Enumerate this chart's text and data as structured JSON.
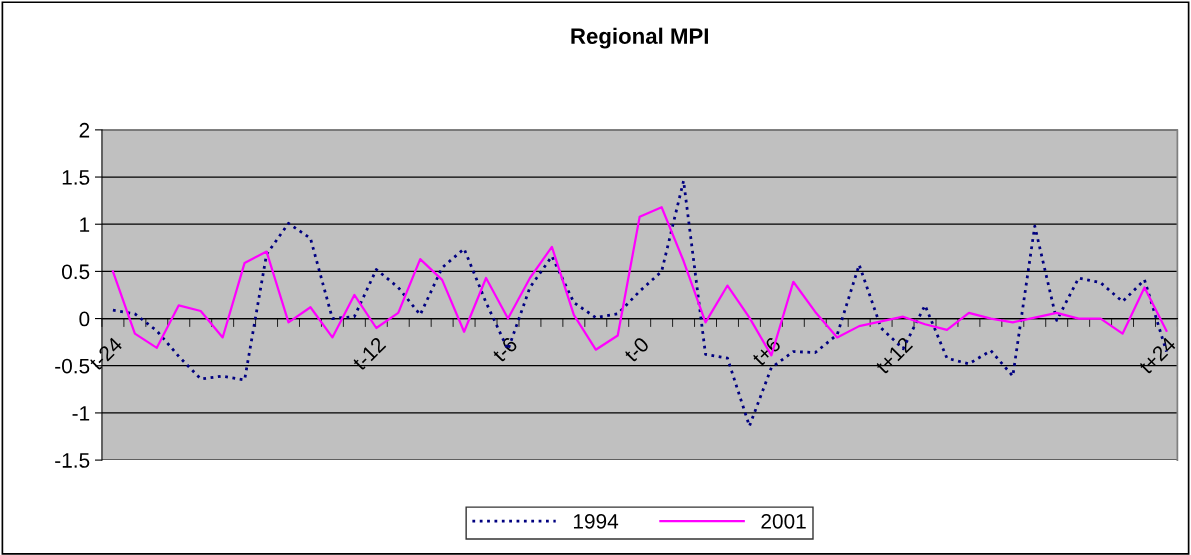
{
  "chart_data": {
    "type": "line",
    "title": "Regional MPI",
    "categories": [
      "t-24",
      null,
      null,
      null,
      null,
      null,
      null,
      null,
      null,
      null,
      null,
      null,
      "t-12",
      null,
      null,
      null,
      null,
      null,
      "t-6",
      null,
      null,
      null,
      null,
      null,
      "t-0",
      null,
      null,
      null,
      null,
      null,
      "t+6",
      null,
      null,
      null,
      null,
      null,
      "t+12",
      null,
      null,
      null,
      null,
      null,
      null,
      null,
      null,
      null,
      null,
      null,
      "t+24"
    ],
    "series": [
      {
        "name": "1994",
        "color": "#000080",
        "line_style": "dotted",
        "values": [
          0.09,
          0.05,
          -0.13,
          -0.4,
          -0.64,
          -0.61,
          -0.65,
          0.68,
          1.01,
          0.85,
          0.0,
          0.02,
          0.52,
          0.33,
          0.04,
          0.54,
          0.74,
          0.17,
          -0.33,
          0.33,
          0.66,
          0.17,
          0.01,
          0.05,
          0.29,
          0.5,
          1.46,
          -0.38,
          -0.42,
          -1.14,
          -0.52,
          -0.35,
          -0.36,
          -0.17,
          0.57,
          -0.1,
          -0.32,
          0.14,
          -0.42,
          -0.48,
          -0.34,
          -0.61,
          0.98,
          -0.02,
          0.43,
          0.38,
          0.18,
          0.41,
          -0.35
        ]
      },
      {
        "name": "2001",
        "color": "#ff00ff",
        "line_style": "solid",
        "values": [
          0.5,
          -0.16,
          -0.31,
          0.14,
          0.08,
          -0.2,
          0.59,
          0.71,
          -0.04,
          0.12,
          -0.2,
          0.25,
          -0.1,
          0.06,
          0.63,
          0.41,
          -0.14,
          0.43,
          0.0,
          0.43,
          0.76,
          0.04,
          -0.33,
          -0.18,
          1.08,
          1.18,
          0.61,
          -0.04,
          0.35,
          0.01,
          -0.39,
          0.39,
          0.07,
          -0.2,
          -0.08,
          -0.03,
          0.02,
          -0.06,
          -0.12,
          0.06,
          0.0,
          -0.04,
          0.01,
          0.06,
          0.0,
          0.0,
          -0.16,
          0.33,
          -0.13
        ]
      }
    ],
    "ylim": [
      -1.5,
      2
    ],
    "yticks": [
      -1.5,
      -1,
      -0.5,
      0,
      0.5,
      1,
      1.5,
      2
    ],
    "grid": "y",
    "legend": "bottom",
    "marker": "none"
  }
}
